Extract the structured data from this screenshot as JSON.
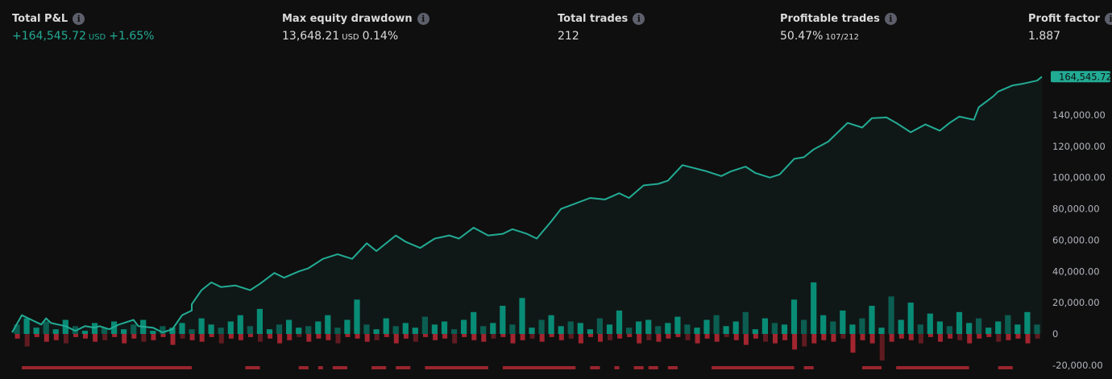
{
  "metrics": {
    "total_pnl": {
      "label": "Total P&L",
      "value": "+164,545.72",
      "unit": "USD",
      "percent": "+1.65%"
    },
    "max_drawdown": {
      "label": "Max equity drawdown",
      "value": "13,648.21",
      "unit": "USD",
      "percent": "0.14%"
    },
    "total_trades": {
      "label": "Total trades",
      "value": "212"
    },
    "profitable_trades": {
      "label": "Profitable trades",
      "value": "50.47%",
      "ratio": "107/212"
    },
    "profit_factor": {
      "label": "Profit factor",
      "value": "1.887"
    }
  },
  "icons": {
    "info": "info-icon"
  },
  "colors": {
    "equity": "#22ab94",
    "positive": "#089981",
    "negative": "#b22833",
    "background": "#0f0f0f"
  },
  "chart_data": {
    "type": "line",
    "title": "",
    "xlabel": "",
    "ylabel": "",
    "ylim": [
      -20000,
      170000
    ],
    "yticks": [
      "-20,000.00",
      "0",
      "20,000.00",
      "40,000.00",
      "60,000.00",
      "80,000.00",
      "100,000.00",
      "120,000.00",
      "140,000.00"
    ],
    "ytick_values": [
      -20000,
      0,
      20000,
      40000,
      60000,
      80000,
      100000,
      120000,
      140000
    ],
    "last_value_label": "164,545.72",
    "grid": false,
    "xlim": [
      0,
      212
    ],
    "equity": {
      "x": [
        0,
        2,
        4,
        6,
        7,
        8,
        11,
        13,
        15,
        17,
        18,
        20,
        22,
        25,
        26,
        29,
        31,
        33,
        35,
        37,
        37,
        39,
        41,
        43,
        46,
        49,
        51,
        54,
        56,
        59,
        61,
        64,
        67,
        70,
        73,
        75,
        79,
        81,
        84,
        87,
        90,
        92,
        95,
        98,
        101,
        103,
        106,
        108,
        111,
        113,
        119,
        122,
        125,
        127,
        130,
        133,
        135,
        138,
        143,
        146,
        148,
        151,
        153,
        156,
        158,
        161,
        163,
        165,
        168,
        170,
        172,
        175,
        177,
        180,
        182,
        185,
        188,
        191,
        193,
        195,
        198,
        199,
        202,
        203,
        206,
        208,
        211,
        212
      ],
      "y": [
        1000,
        12000,
        9000,
        6000,
        10000,
        7000,
        5000,
        2000,
        5000,
        4000,
        5000,
        3000,
        6000,
        9000,
        5000,
        4000,
        1000,
        3000,
        12000,
        15000,
        19000,
        28000,
        33000,
        30000,
        31000,
        28000,
        32000,
        39000,
        36000,
        40000,
        42000,
        48000,
        51000,
        48000,
        58000,
        53000,
        63000,
        59000,
        55000,
        61000,
        63000,
        61000,
        68000,
        63000,
        64000,
        67000,
        64000,
        61000,
        72000,
        80000,
        87000,
        86000,
        90000,
        87000,
        95000,
        96000,
        98000,
        108000,
        104000,
        101000,
        104000,
        107000,
        103000,
        100000,
        102000,
        112000,
        113000,
        118000,
        123000,
        129000,
        135000,
        132000,
        138000,
        138500,
        135000,
        129000,
        134000,
        130000,
        135000,
        139000,
        137000,
        145000,
        152000,
        155000,
        159000,
        160000,
        162000,
        164545.72
      ]
    },
    "runup_bars": [
      6000,
      10000,
      4000,
      8000,
      3000,
      9000,
      5000,
      2000,
      7000,
      4000,
      8000,
      3000,
      6000,
      9000,
      2000,
      5000,
      4000,
      7000,
      3000,
      10000,
      6000,
      4000,
      8000,
      12000,
      5000,
      16000,
      3000,
      6000,
      9000,
      4000,
      5000,
      8000,
      12000,
      4000,
      9000,
      22000,
      6000,
      3000,
      10000,
      5000,
      7000,
      4000,
      11000,
      6000,
      8000,
      3000,
      9000,
      14000,
      5000,
      7000,
      18000,
      6000,
      23000,
      4000,
      9000,
      12000,
      5000,
      8000,
      7000,
      3000,
      10000,
      6000,
      15000,
      4000,
      8000,
      9000,
      5000,
      7000,
      11000,
      6000,
      4000,
      9000,
      12000,
      5000,
      8000,
      14000,
      3000,
      10000,
      7000,
      6000,
      22000,
      9000,
      33000,
      12000,
      8000,
      15000,
      6000,
      10000,
      18000,
      4000,
      24000,
      9000,
      20000,
      6000,
      13000,
      8000,
      5000,
      14000,
      7000,
      10000,
      4000,
      8000,
      12000,
      6000,
      14000,
      6000
    ],
    "drawdown_bars": [
      -3000,
      -8000,
      -2000,
      -5000,
      -4000,
      -6000,
      -2000,
      -3000,
      -5000,
      -4000,
      -2000,
      -6000,
      -3000,
      -5000,
      -4000,
      -2000,
      -7000,
      -3000,
      -4000,
      -5000,
      -2000,
      -6000,
      -3000,
      -4000,
      -2000,
      -5000,
      -3000,
      -6000,
      -4000,
      -2000,
      -5000,
      -3000,
      -4000,
      -6000,
      -2000,
      -3000,
      -5000,
      -4000,
      -2000,
      -6000,
      -3000,
      -5000,
      -2000,
      -4000,
      -3000,
      -6000,
      -2000,
      -4000,
      -5000,
      -3000,
      -2000,
      -6000,
      -4000,
      -3000,
      -5000,
      -2000,
      -4000,
      -3000,
      -6000,
      -2000,
      -5000,
      -4000,
      -3000,
      -2000,
      -6000,
      -4000,
      -5000,
      -3000,
      -2000,
      -4000,
      -6000,
      -3000,
      -5000,
      -2000,
      -4000,
      -7000,
      -3000,
      -5000,
      -6000,
      -4000,
      -10000,
      -8000,
      -6000,
      -4000,
      -5000,
      -3000,
      -12000,
      -4000,
      -6000,
      -17000,
      -5000,
      -3000,
      -4000,
      -6000,
      -2000,
      -5000,
      -3000,
      -4000,
      -6000,
      -3000,
      -2000,
      -5000,
      -4000,
      -3000,
      -6000,
      -3000
    ],
    "drawdown_periods": [
      [
        2,
        37
      ],
      [
        48,
        51
      ],
      [
        59,
        61
      ],
      [
        63,
        64
      ],
      [
        66,
        69
      ],
      [
        74,
        77
      ],
      [
        79,
        82
      ],
      [
        85,
        98
      ],
      [
        101,
        116
      ],
      [
        119,
        121
      ],
      [
        124,
        125
      ],
      [
        128,
        130
      ],
      [
        131,
        133
      ],
      [
        135,
        137
      ],
      [
        144,
        161
      ],
      [
        163,
        165
      ],
      [
        175,
        179
      ],
      [
        182,
        197
      ],
      [
        203,
        206
      ]
    ]
  }
}
